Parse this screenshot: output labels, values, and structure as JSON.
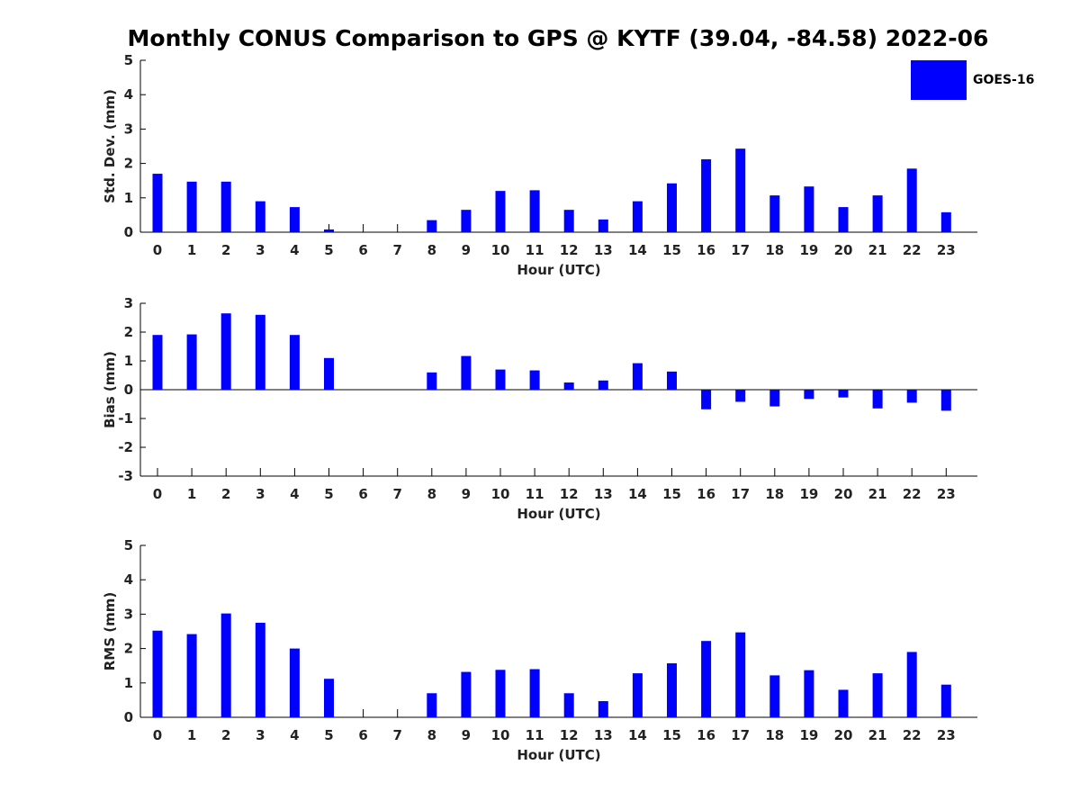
{
  "title": "Monthly CONUS Comparison to GPS @ KYTF (39.04, -84.58) 2022-06",
  "legend": {
    "label": "GOES-16",
    "color": "#0000ff"
  },
  "chart_data": [
    {
      "type": "bar",
      "ylabel": "Std. Dev. (mm)",
      "xlabel": "Hour (UTC)",
      "categories": [
        "0",
        "1",
        "2",
        "3",
        "4",
        "5",
        "6",
        "7",
        "8",
        "9",
        "10",
        "11",
        "12",
        "13",
        "14",
        "15",
        "16",
        "17",
        "18",
        "19",
        "20",
        "21",
        "22",
        "23"
      ],
      "yticks": [
        0,
        1,
        2,
        3,
        4,
        5
      ],
      "ylim": [
        0,
        5
      ],
      "series": [
        {
          "name": "GOES-16",
          "values": [
            1.7,
            1.47,
            1.47,
            0.9,
            0.73,
            0.08,
            0,
            0,
            0.35,
            0.65,
            1.2,
            1.22,
            0.65,
            0.37,
            0.9,
            1.42,
            2.12,
            2.43,
            1.07,
            1.33,
            0.73,
            1.07,
            1.85,
            0.58
          ]
        }
      ]
    },
    {
      "type": "bar",
      "ylabel": "Bias (mm)",
      "xlabel": "Hour (UTC)",
      "categories": [
        "0",
        "1",
        "2",
        "3",
        "4",
        "5",
        "6",
        "7",
        "8",
        "9",
        "10",
        "11",
        "12",
        "13",
        "14",
        "15",
        "16",
        "17",
        "18",
        "19",
        "20",
        "21",
        "22",
        "23"
      ],
      "yticks": [
        -3,
        -2,
        -1,
        0,
        1,
        2,
        3
      ],
      "ylim": [
        -3,
        3
      ],
      "series": [
        {
          "name": "GOES-16",
          "values": [
            1.9,
            1.92,
            2.65,
            2.6,
            1.9,
            1.1,
            0,
            0,
            0.6,
            1.17,
            0.7,
            0.67,
            0.25,
            0.32,
            0.92,
            0.63,
            -0.68,
            -0.42,
            -0.58,
            -0.32,
            -0.27,
            -0.65,
            -0.45,
            -0.73
          ]
        }
      ]
    },
    {
      "type": "bar",
      "ylabel": "RMS (mm)",
      "xlabel": "Hour (UTC)",
      "categories": [
        "0",
        "1",
        "2",
        "3",
        "4",
        "5",
        "6",
        "7",
        "8",
        "9",
        "10",
        "11",
        "12",
        "13",
        "14",
        "15",
        "16",
        "17",
        "18",
        "19",
        "20",
        "21",
        "22",
        "23"
      ],
      "yticks": [
        0,
        1,
        2,
        3,
        4,
        5
      ],
      "ylim": [
        0,
        5
      ],
      "series": [
        {
          "name": "GOES-16",
          "values": [
            2.52,
            2.42,
            3.02,
            2.75,
            2.0,
            1.12,
            0,
            0,
            0.7,
            1.32,
            1.38,
            1.4,
            0.7,
            0.47,
            1.28,
            1.57,
            2.22,
            2.47,
            1.22,
            1.37,
            0.8,
            1.28,
            1.9,
            0.95
          ]
        }
      ]
    }
  ]
}
